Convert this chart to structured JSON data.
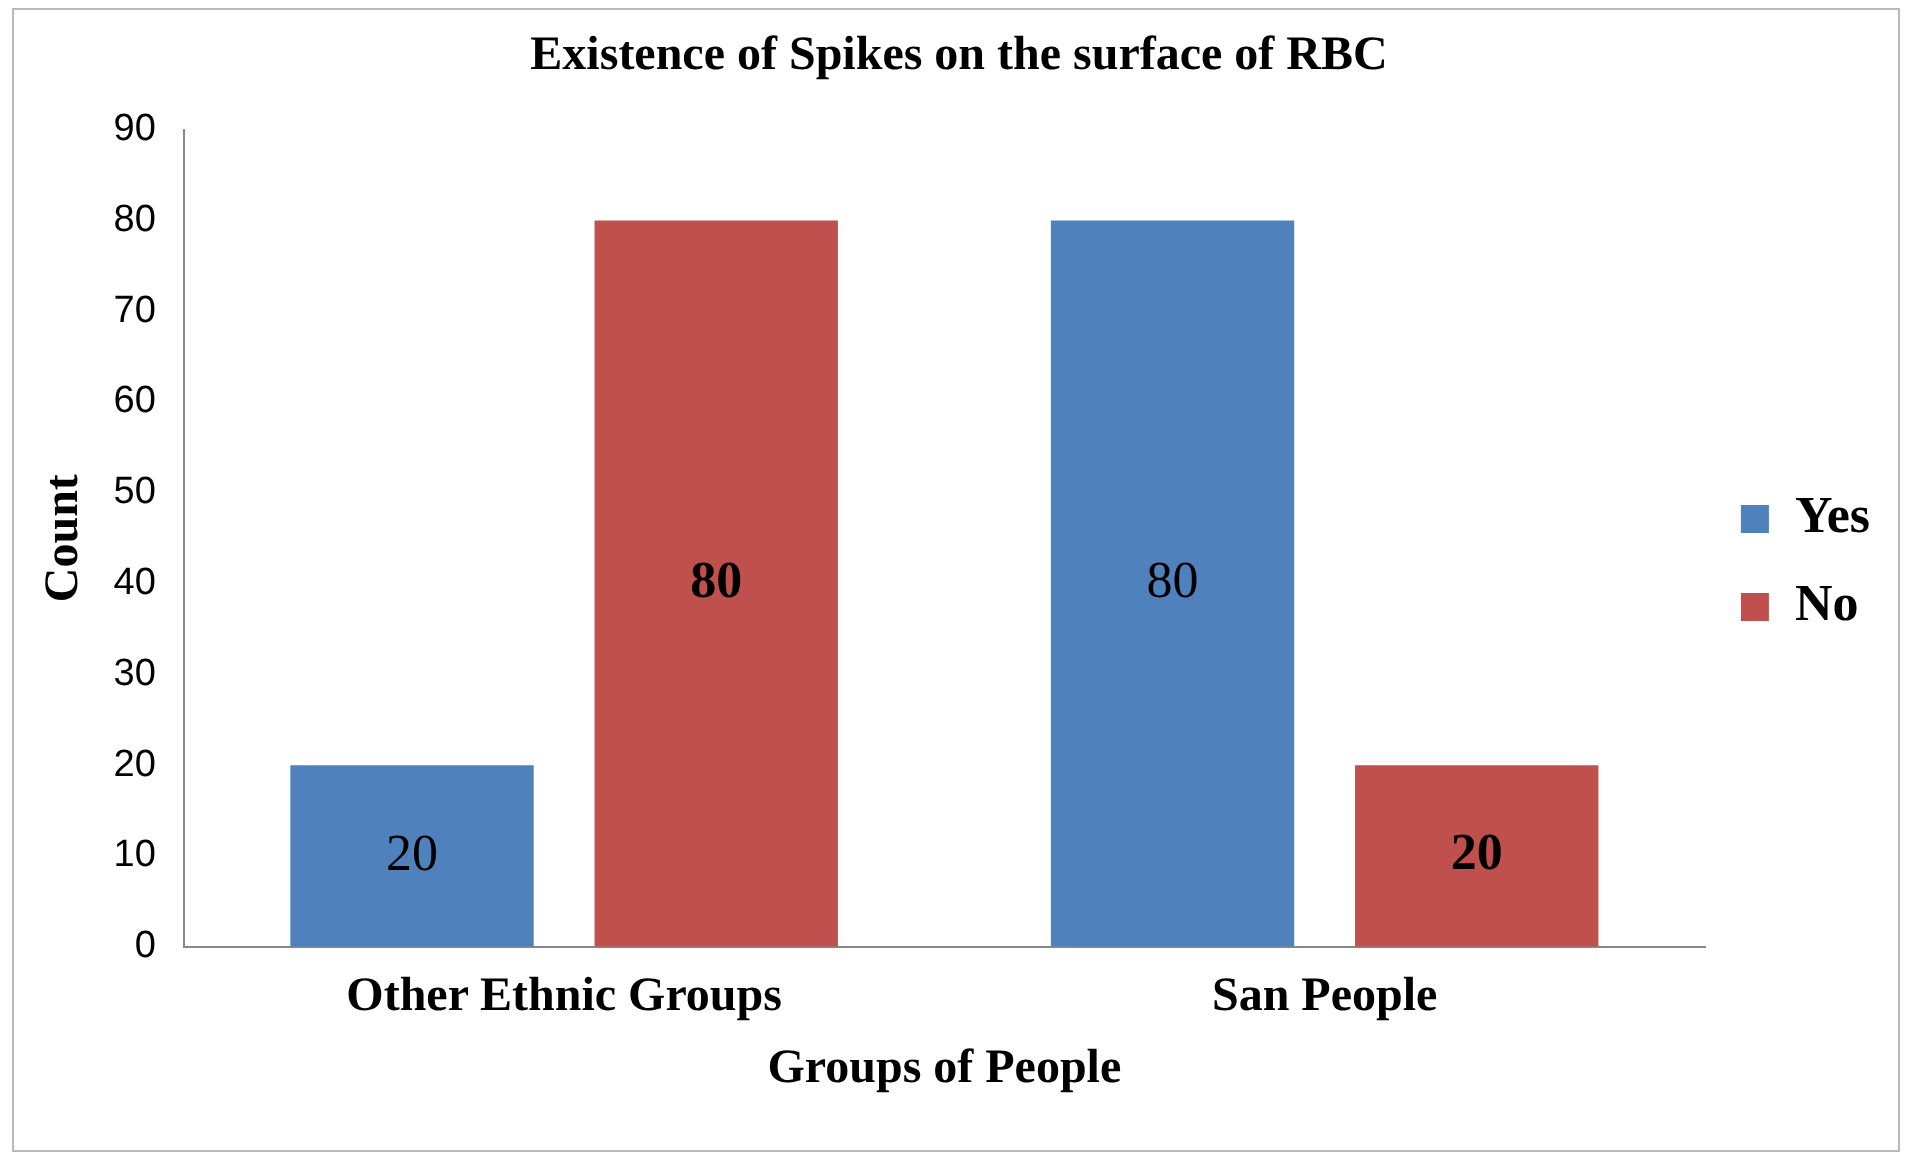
{
  "chart_data": {
    "type": "bar",
    "title": "Existence of Spikes on the surface of RBC",
    "xlabel": "Groups of People",
    "ylabel": "Count",
    "categories": [
      "Other Ethnic Groups",
      "San People"
    ],
    "series": [
      {
        "name": "Yes",
        "color": "#4f81bd",
        "values": [
          20,
          80
        ]
      },
      {
        "name": "No",
        "color": "#c0504d",
        "values": [
          80,
          20
        ]
      }
    ],
    "ylim": [
      0,
      90
    ],
    "yticks": [
      0,
      10,
      20,
      30,
      40,
      50,
      60,
      70,
      80,
      90
    ],
    "grid": false,
    "legend": "right",
    "data_labels": true
  }
}
